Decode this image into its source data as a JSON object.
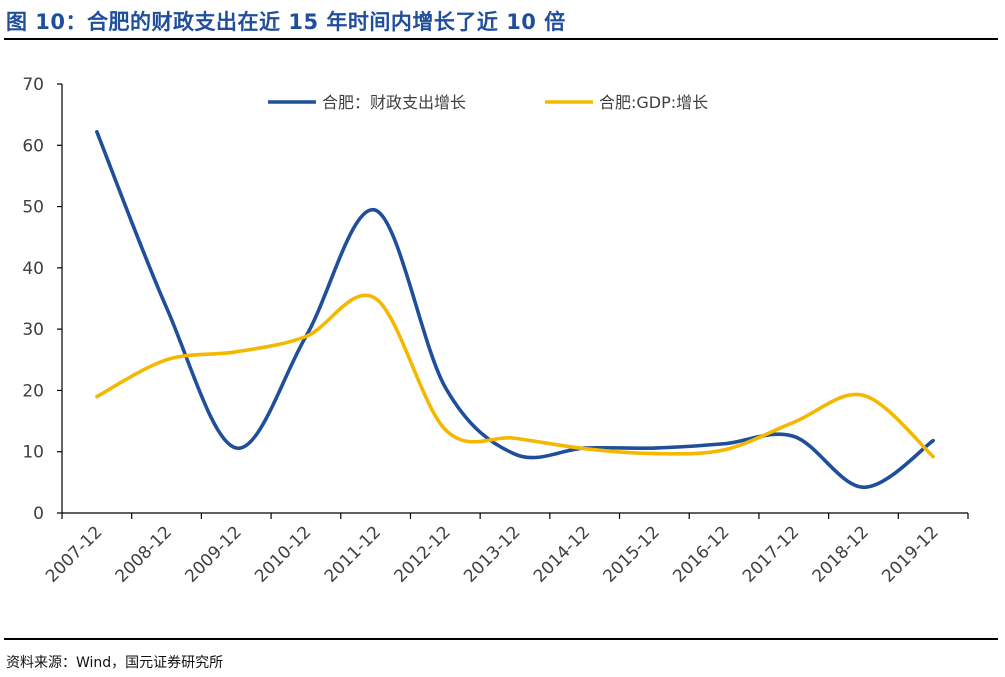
{
  "figure": {
    "title": "图 10：合肥的财政支出在近 15 年时间内增长了近 10 倍",
    "source": "资料来源：Wind，国元证券研究所"
  },
  "colors": {
    "title": "#1f4e9a",
    "series_fiscal": "#1f4e9a",
    "series_gdp": "#f5b800",
    "axis": "#000000",
    "tick_text": "#404040"
  },
  "chart_data": {
    "type": "line",
    "smooth": true,
    "title": "",
    "xlabel": "",
    "ylabel": "",
    "x": [
      "2007-12",
      "2008-12",
      "2009-12",
      "2010-12",
      "2011-12",
      "2012-12",
      "2013-12",
      "2014-12",
      "2015-12",
      "2016-12",
      "2017-12",
      "2018-12",
      "2019-12"
    ],
    "ylim": [
      0,
      70
    ],
    "yticks": [
      0,
      10,
      20,
      30,
      40,
      50,
      60,
      70
    ],
    "grid": false,
    "legend_position": "top-center",
    "series": [
      {
        "name": "合肥：财政支出增长",
        "color": "#1f4e9a",
        "values": [
          62.2,
          33.5,
          10.6,
          28.8,
          49.4,
          20.5,
          9.6,
          10.6,
          10.6,
          11.3,
          12.5,
          4.2,
          11.8
        ]
      },
      {
        "name": "合肥:GDP:增长",
        "color": "#f5b800",
        "values": [
          19.0,
          25.0,
          26.3,
          28.8,
          35.0,
          13.6,
          12.2,
          10.5,
          9.7,
          10.3,
          14.8,
          19.2,
          9.2
        ]
      }
    ]
  }
}
